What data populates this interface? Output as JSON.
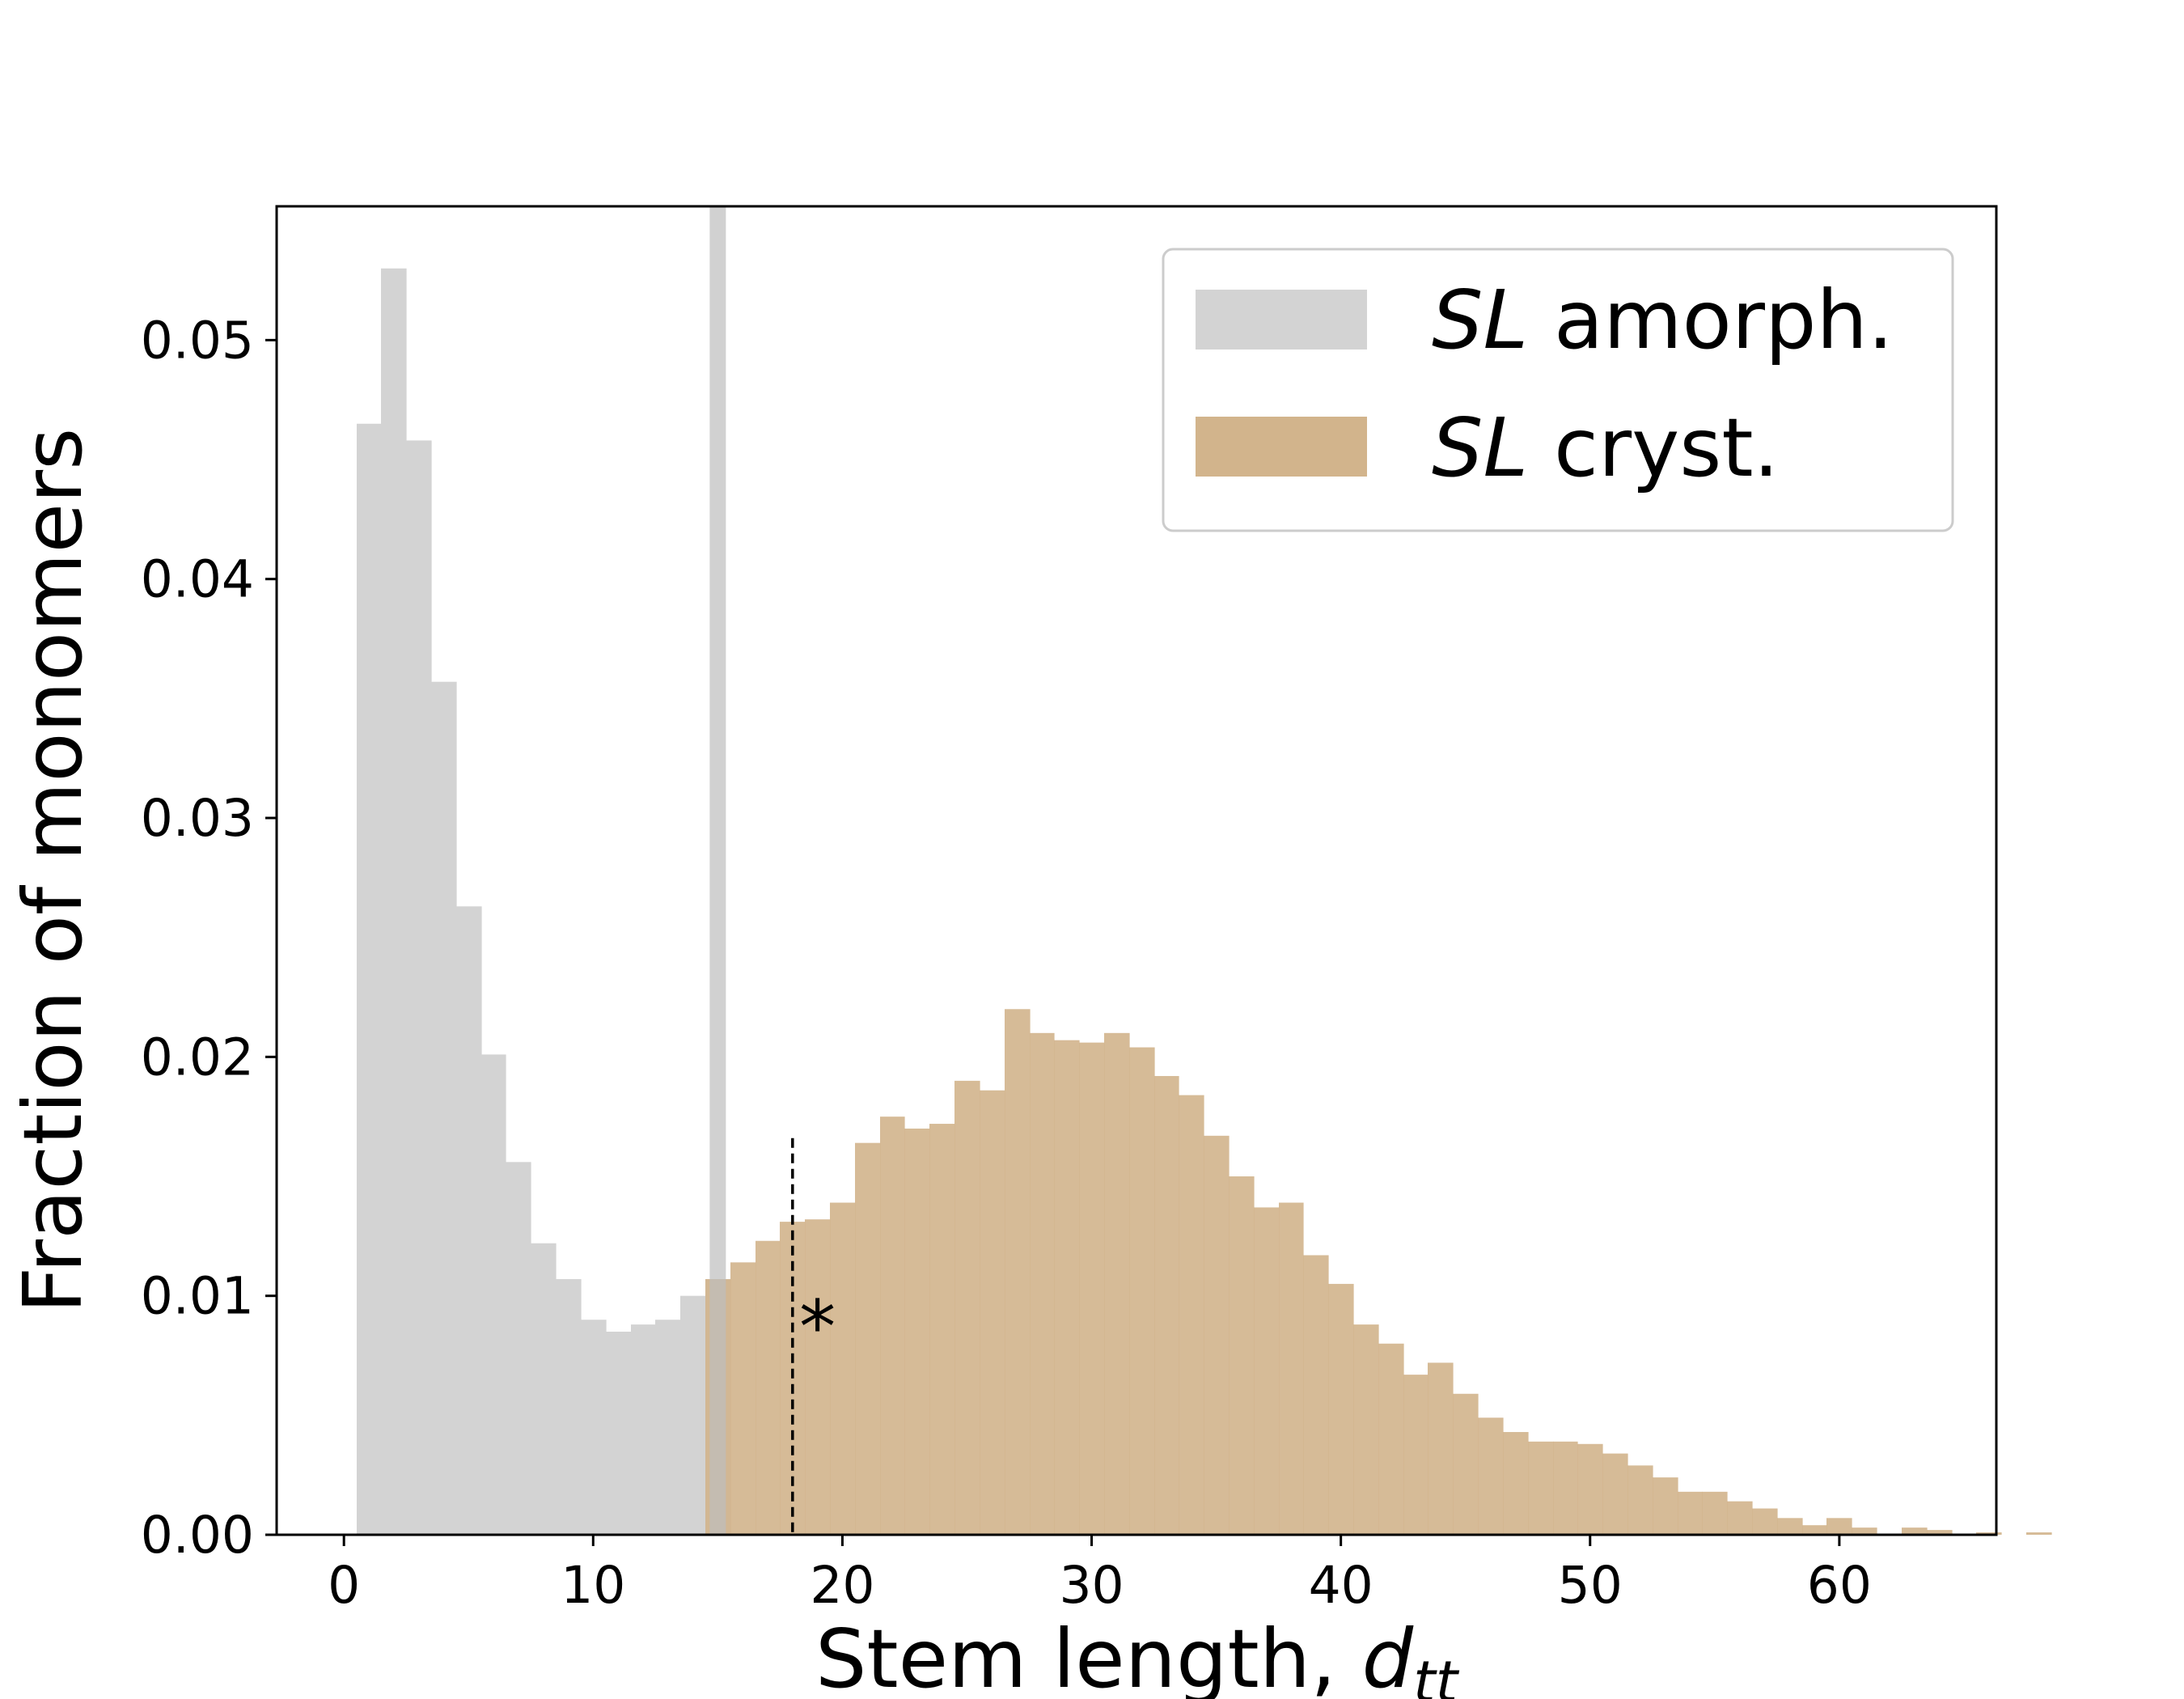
{
  "chart_data": {
    "type": "bar",
    "xlabel": "Stem length, ",
    "xlabel_math_base": "d",
    "xlabel_math_sub": "tt",
    "ylabel": "Fraction of monomers",
    "xlim": [
      -2.7,
      66.3
    ],
    "ylim": [
      0,
      0.0556
    ],
    "xticks": [
      0,
      10,
      20,
      30,
      40,
      50,
      60
    ],
    "xtick_labels": [
      "0",
      "10",
      "20",
      "30",
      "40",
      "50",
      "60"
    ],
    "yticks": [
      0,
      0.01,
      0.02,
      0.03,
      0.04,
      0.05
    ],
    "ytick_labels": [
      "0.00",
      "0.01",
      "0.02",
      "0.03",
      "0.04",
      "0.05"
    ],
    "grid": false,
    "legend_position": "upper-right",
    "bin_width": 1.0,
    "series": [
      {
        "name": "SL amorph.",
        "name_italic": "SL",
        "name_rest": " amorph.",
        "color": "#d3d3d3",
        "bin_start": 0.5,
        "values": [
          0.0465,
          0.053,
          0.0458,
          0.0357,
          0.0263,
          0.0201,
          0.0156,
          0.0122,
          0.0107,
          0.009,
          0.0085,
          0.0088,
          0.009,
          0.01,
          0.0107
        ]
      },
      {
        "name": "SL cryst.",
        "name_italic": "SL",
        "name_rest": " cryst.",
        "color": "#d2b48c",
        "bin_start": 14.5,
        "values": [
          0.0107,
          0.0114,
          0.0123,
          0.0131,
          0.0132,
          0.0139,
          0.0164,
          0.0175,
          0.017,
          0.0172,
          0.019,
          0.0186,
          0.022,
          0.021,
          0.0207,
          0.0206,
          0.021,
          0.0204,
          0.0192,
          0.0184,
          0.0167,
          0.015,
          0.0137,
          0.0139,
          0.0117,
          0.0105,
          0.0088,
          0.008,
          0.0067,
          0.0072,
          0.0059,
          0.0049,
          0.0043,
          0.0039,
          0.0039,
          0.0038,
          0.0034,
          0.0029,
          0.0024,
          0.0018,
          0.0018,
          0.0014,
          0.0011,
          0.0007,
          0.0004,
          0.0007,
          0.0003,
          0.0,
          0.0003,
          0.0002,
          0.0,
          0.0001,
          0.0,
          0.0001
        ]
      }
    ],
    "vertical_band": {
      "x": 15.0,
      "width": 0.65,
      "color": "#d3d3d3"
    },
    "threshold_line": {
      "x": 18.0,
      "y_top": 0.0166,
      "style": "dashed"
    },
    "annotation": {
      "text": "*",
      "x": 19.0,
      "y": 0.0095
    }
  }
}
